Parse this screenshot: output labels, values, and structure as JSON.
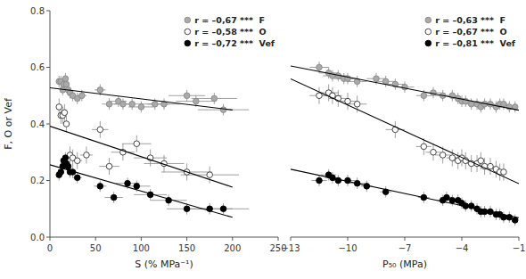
{
  "chart_data": [
    {
      "type": "scatter",
      "x_label": "S (% MPa⁻¹)",
      "y_label": "F, O or Vef",
      "xlim": [
        0,
        250
      ],
      "xticks": [
        0,
        50,
        100,
        150,
        200,
        250
      ],
      "ylim": [
        0,
        0.8
      ],
      "yticks": [
        {
          "value": 0,
          "label": "0.0"
        },
        0.2,
        0.4,
        0.6,
        0.8
      ],
      "grid": false,
      "legend": "upper right",
      "series": [
        {
          "name": "r = –0,67 ***  F",
          "color": "#aaaaaa",
          "marker": "circle",
          "x": [
            10,
            12,
            14,
            15,
            17,
            18,
            20,
            22,
            25,
            30,
            35,
            55,
            65,
            75,
            80,
            90,
            100,
            115,
            125,
            150,
            160,
            180,
            190
          ],
          "values": [
            0.55,
            0.55,
            0.52,
            0.54,
            0.56,
            0.54,
            0.52,
            0.51,
            0.5,
            0.49,
            0.5,
            0.52,
            0.47,
            0.48,
            0.47,
            0.47,
            0.46,
            0.47,
            0.47,
            0.5,
            0.48,
            0.49,
            0.45
          ],
          "x_errors": [
            1.5,
            1.5,
            1.5,
            1.5,
            2,
            2,
            2,
            2,
            3,
            4,
            5,
            6,
            8,
            9,
            10,
            12,
            14,
            16,
            18,
            20,
            22,
            25,
            28
          ],
          "y_errors": [
            0.02,
            0.02,
            0.02,
            0.02,
            0.02,
            0.02,
            0.02,
            0.02,
            0.02,
            0.02,
            0.02,
            0.02,
            0.02,
            0.02,
            0.02,
            0.02,
            0.02,
            0.02,
            0.02,
            0.02,
            0.02,
            0.02,
            0.02
          ],
          "fit": {
            "x": [
              0,
              200
            ],
            "y": [
              0.5278,
              0.4493
            ]
          }
        },
        {
          "name": "r = –0,58 ***  O",
          "color": "#333333",
          "marker": "open-circle",
          "x": [
            10,
            12,
            14,
            16,
            18,
            22,
            25,
            30,
            40,
            55,
            65,
            80,
            95,
            110,
            125,
            150,
            175
          ],
          "values": [
            0.46,
            0.43,
            0.43,
            0.44,
            0.4,
            0.29,
            0.28,
            0.27,
            0.29,
            0.38,
            0.25,
            0.3,
            0.33,
            0.28,
            0.26,
            0.23,
            0.22
          ],
          "x_errors": [
            1.5,
            1.5,
            2,
            2,
            3,
            3,
            4,
            5,
            7,
            9,
            11,
            13,
            16,
            18,
            22,
            28,
            32
          ],
          "y_errors": [
            0.03,
            0.03,
            0.03,
            0.03,
            0.03,
            0.03,
            0.03,
            0.03,
            0.03,
            0.03,
            0.03,
            0.03,
            0.03,
            0.03,
            0.03,
            0.03,
            0.03
          ],
          "fit": {
            "x": [
              0,
              200
            ],
            "y": [
              0.3919,
              0.1766
            ]
          }
        },
        {
          "name": "r = –0,72 ***  Vef",
          "color": "#000000",
          "marker": "circle",
          "x": [
            10,
            12,
            14,
            15,
            17,
            18,
            20,
            22,
            25,
            30,
            55,
            70,
            85,
            95,
            110,
            130,
            150,
            175,
            190
          ],
          "values": [
            0.22,
            0.23,
            0.25,
            0.27,
            0.28,
            0.26,
            0.25,
            0.23,
            0.23,
            0.21,
            0.18,
            0.14,
            0.19,
            0.18,
            0.15,
            0.13,
            0.1,
            0.1,
            0.1
          ],
          "x_errors": [
            1.5,
            1.5,
            2,
            2,
            2,
            3,
            3,
            3,
            4,
            5,
            7,
            10,
            13,
            15,
            18,
            20,
            22,
            25,
            28
          ],
          "y_errors": [
            0.02,
            0.02,
            0.02,
            0.02,
            0.02,
            0.02,
            0.02,
            0.02,
            0.02,
            0.02,
            0.02,
            0.02,
            0.02,
            0.02,
            0.02,
            0.02,
            0.02,
            0.02,
            0.02
          ],
          "fit": {
            "x": [
              0,
              200
            ],
            "y": [
              0.2555,
              0.0698
            ]
          }
        }
      ]
    },
    {
      "type": "scatter",
      "x_label": "P₅₀ (MPa)",
      "xlim": [
        -13,
        -1
      ],
      "xticks": [
        {
          "value": -13,
          "label": "−13"
        },
        {
          "value": -10,
          "label": "−10"
        },
        {
          "value": -7,
          "label": "−7"
        },
        {
          "value": -4,
          "label": "−4"
        },
        {
          "value": -1,
          "label": "−1"
        }
      ],
      "ylim": [
        0,
        0.8
      ],
      "tick_labels": "x",
      "grid": false,
      "legend": "upper right",
      "series": [
        {
          "name": "r = –0,63 ***  F",
          "color": "#aaaaaa",
          "marker": "circle",
          "x": [
            -11.5,
            -11,
            -10.8,
            -10.5,
            -10.2,
            -10,
            -9.5,
            -8.5,
            -8,
            -7.5,
            -7,
            -6,
            -5.5,
            -5,
            -4.5,
            -4.2,
            -4,
            -3.8,
            -3.5,
            -3.2,
            -3,
            -2.8,
            -2.5,
            -2.2,
            -2,
            -1.8,
            -1.5,
            -1.2
          ],
          "values": [
            0.6,
            0.58,
            0.57,
            0.57,
            0.56,
            0.56,
            0.55,
            0.56,
            0.55,
            0.54,
            0.53,
            0.5,
            0.51,
            0.5,
            0.5,
            0.49,
            0.48,
            0.48,
            0.47,
            0.47,
            0.46,
            0.47,
            0.47,
            0.46,
            0.47,
            0.47,
            0.46,
            0.46
          ],
          "x_errors": [
            0.5,
            0.5,
            0.5,
            0.5,
            0.5,
            0.5,
            0.5,
            0.5,
            0.5,
            0.5,
            0.5,
            0.4,
            0.4,
            0.4,
            0.3,
            0.3,
            0.3,
            0.3,
            0.3,
            0.2,
            0.2,
            0.2,
            0.2,
            0.2,
            0.2,
            0.2,
            0.1,
            0.1
          ],
          "y_errors": [
            0.02,
            0.02,
            0.02,
            0.02,
            0.02,
            0.02,
            0.02,
            0.02,
            0.02,
            0.02,
            0.02,
            0.02,
            0.02,
            0.02,
            0.02,
            0.02,
            0.02,
            0.02,
            0.02,
            0.02,
            0.02,
            0.02,
            0.02,
            0.02,
            0.02,
            0.02,
            0.02,
            0.02
          ],
          "fit": {
            "x": [
              -13,
              -1
            ],
            "y": [
              0.6048,
              0.4483
            ]
          }
        },
        {
          "name": "r = –0,67 ***  O",
          "color": "#333333",
          "marker": "open-circle",
          "x": [
            -11.5,
            -11,
            -10.8,
            -10.5,
            -10,
            -9.5,
            -7.5,
            -6,
            -5.5,
            -5,
            -4.5,
            -4.2,
            -4,
            -3.8,
            -3.5,
            -3.2,
            -3,
            -2.8,
            -2.5,
            -2.2,
            -2,
            -1.8
          ],
          "values": [
            0.5,
            0.51,
            0.5,
            0.49,
            0.48,
            0.47,
            0.38,
            0.32,
            0.3,
            0.29,
            0.28,
            0.27,
            0.28,
            0.27,
            0.26,
            0.26,
            0.27,
            0.25,
            0.25,
            0.24,
            0.23,
            0.23
          ],
          "x_errors": [
            0.5,
            0.5,
            0.5,
            0.5,
            0.5,
            0.5,
            0.5,
            0.4,
            0.4,
            0.4,
            0.3,
            0.3,
            0.3,
            0.2,
            0.2,
            0.2,
            0.2,
            0.2,
            0.2,
            0.2,
            0.1,
            0.1
          ],
          "y_errors": [
            0.03,
            0.03,
            0.03,
            0.03,
            0.03,
            0.03,
            0.03,
            0.03,
            0.03,
            0.03,
            0.03,
            0.03,
            0.03,
            0.03,
            0.03,
            0.03,
            0.03,
            0.03,
            0.03,
            0.03,
            0.03,
            0.03
          ],
          "fit": {
            "x": [
              -13,
              -1
            ],
            "y": [
              0.5592,
              0.189
            ]
          }
        },
        {
          "name": "r = –0,81 ***  Vef",
          "color": "#000000",
          "marker": "circle",
          "x": [
            -11.5,
            -11,
            -10.8,
            -10.5,
            -10,
            -9.5,
            -9,
            -8,
            -6,
            -5,
            -4.8,
            -4.5,
            -4.2,
            -4,
            -3.8,
            -3.5,
            -3.2,
            -3,
            -2.8,
            -2.5,
            -2.2,
            -2,
            -1.8,
            -1.5,
            -1.2
          ],
          "values": [
            0.2,
            0.22,
            0.21,
            0.2,
            0.2,
            0.19,
            0.18,
            0.16,
            0.14,
            0.13,
            0.14,
            0.13,
            0.13,
            0.12,
            0.11,
            0.11,
            0.1,
            0.09,
            0.09,
            0.09,
            0.08,
            0.08,
            0.07,
            0.07,
            0.06
          ],
          "x_errors": [
            0.4,
            0.4,
            0.4,
            0.4,
            0.4,
            0.4,
            0.3,
            0.3,
            0.3,
            0.3,
            0.3,
            0.2,
            0.2,
            0.2,
            0.2,
            0.2,
            0.2,
            0.2,
            0.1,
            0.1,
            0.1,
            0.1,
            0.1,
            0.1,
            0.1
          ],
          "y_errors": [
            0.02,
            0.02,
            0.02,
            0.02,
            0.02,
            0.02,
            0.02,
            0.02,
            0.02,
            0.02,
            0.02,
            0.02,
            0.02,
            0.02,
            0.02,
            0.02,
            0.02,
            0.02,
            0.02,
            0.02,
            0.02,
            0.02,
            0.02,
            0.02,
            0.02
          ],
          "fit": {
            "x": [
              -13,
              -1
            ],
            "y": [
              0.2398,
              0.0684
            ]
          }
        }
      ]
    }
  ]
}
